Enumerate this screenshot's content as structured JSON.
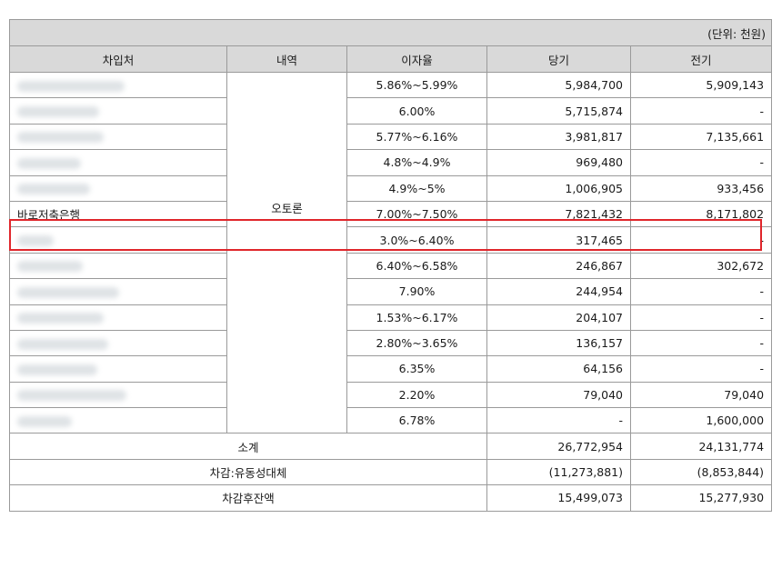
{
  "table": {
    "unit_label": "(단위: 천원)",
    "headers": [
      "차입처",
      "내역",
      "이자율",
      "당기",
      "전기"
    ],
    "category": "오토론",
    "rows": [
      {
        "lender": "",
        "rate": "5.86%~5.99%",
        "current": "5,984,700",
        "prior": "5,909,143"
      },
      {
        "lender": "",
        "rate": "6.00%",
        "current": "5,715,874",
        "prior": "-"
      },
      {
        "lender": "",
        "rate": "5.77%~6.16%",
        "current": "3,981,817",
        "prior": "7,135,661"
      },
      {
        "lender": "",
        "rate": "4.8%~4.9%",
        "current": "969,480",
        "prior": "-"
      },
      {
        "lender": "",
        "rate": "4.9%~5%",
        "current": "1,006,905",
        "prior": "933,456"
      },
      {
        "lender": "바로저축은행",
        "rate": "7.00%~7.50%",
        "current": "7,821,432",
        "prior": "8,171,802"
      },
      {
        "lender": "",
        "rate": "3.0%~6.40%",
        "current": "317,465",
        "prior": "-"
      },
      {
        "lender": "",
        "rate": "6.40%~6.58%",
        "current": "246,867",
        "prior": "302,672"
      },
      {
        "lender": "",
        "rate": "7.90%",
        "current": "244,954",
        "prior": "-"
      },
      {
        "lender": "",
        "rate": "1.53%~6.17%",
        "current": "204,107",
        "prior": "-"
      },
      {
        "lender": "",
        "rate": "2.80%~3.65%",
        "current": "136,157",
        "prior": "-"
      },
      {
        "lender": "",
        "rate": "6.35%",
        "current": "64,156",
        "prior": "-"
      },
      {
        "lender": "",
        "rate": "2.20%",
        "current": "79,040",
        "prior": "79,040"
      },
      {
        "lender": "",
        "rate": "6.78%",
        "current": "-",
        "prior": "1,600,000"
      }
    ],
    "totals": [
      {
        "label": "소계",
        "current": "26,772,954",
        "prior": "24,131,774"
      },
      {
        "label": "차감:유동성대체",
        "current": "(11,273,881)",
        "prior": "(8,853,844)"
      },
      {
        "label": "차감후잔액",
        "current": "15,499,073",
        "prior": "15,277,930"
      }
    ],
    "highlight_color": "#e0262b"
  }
}
